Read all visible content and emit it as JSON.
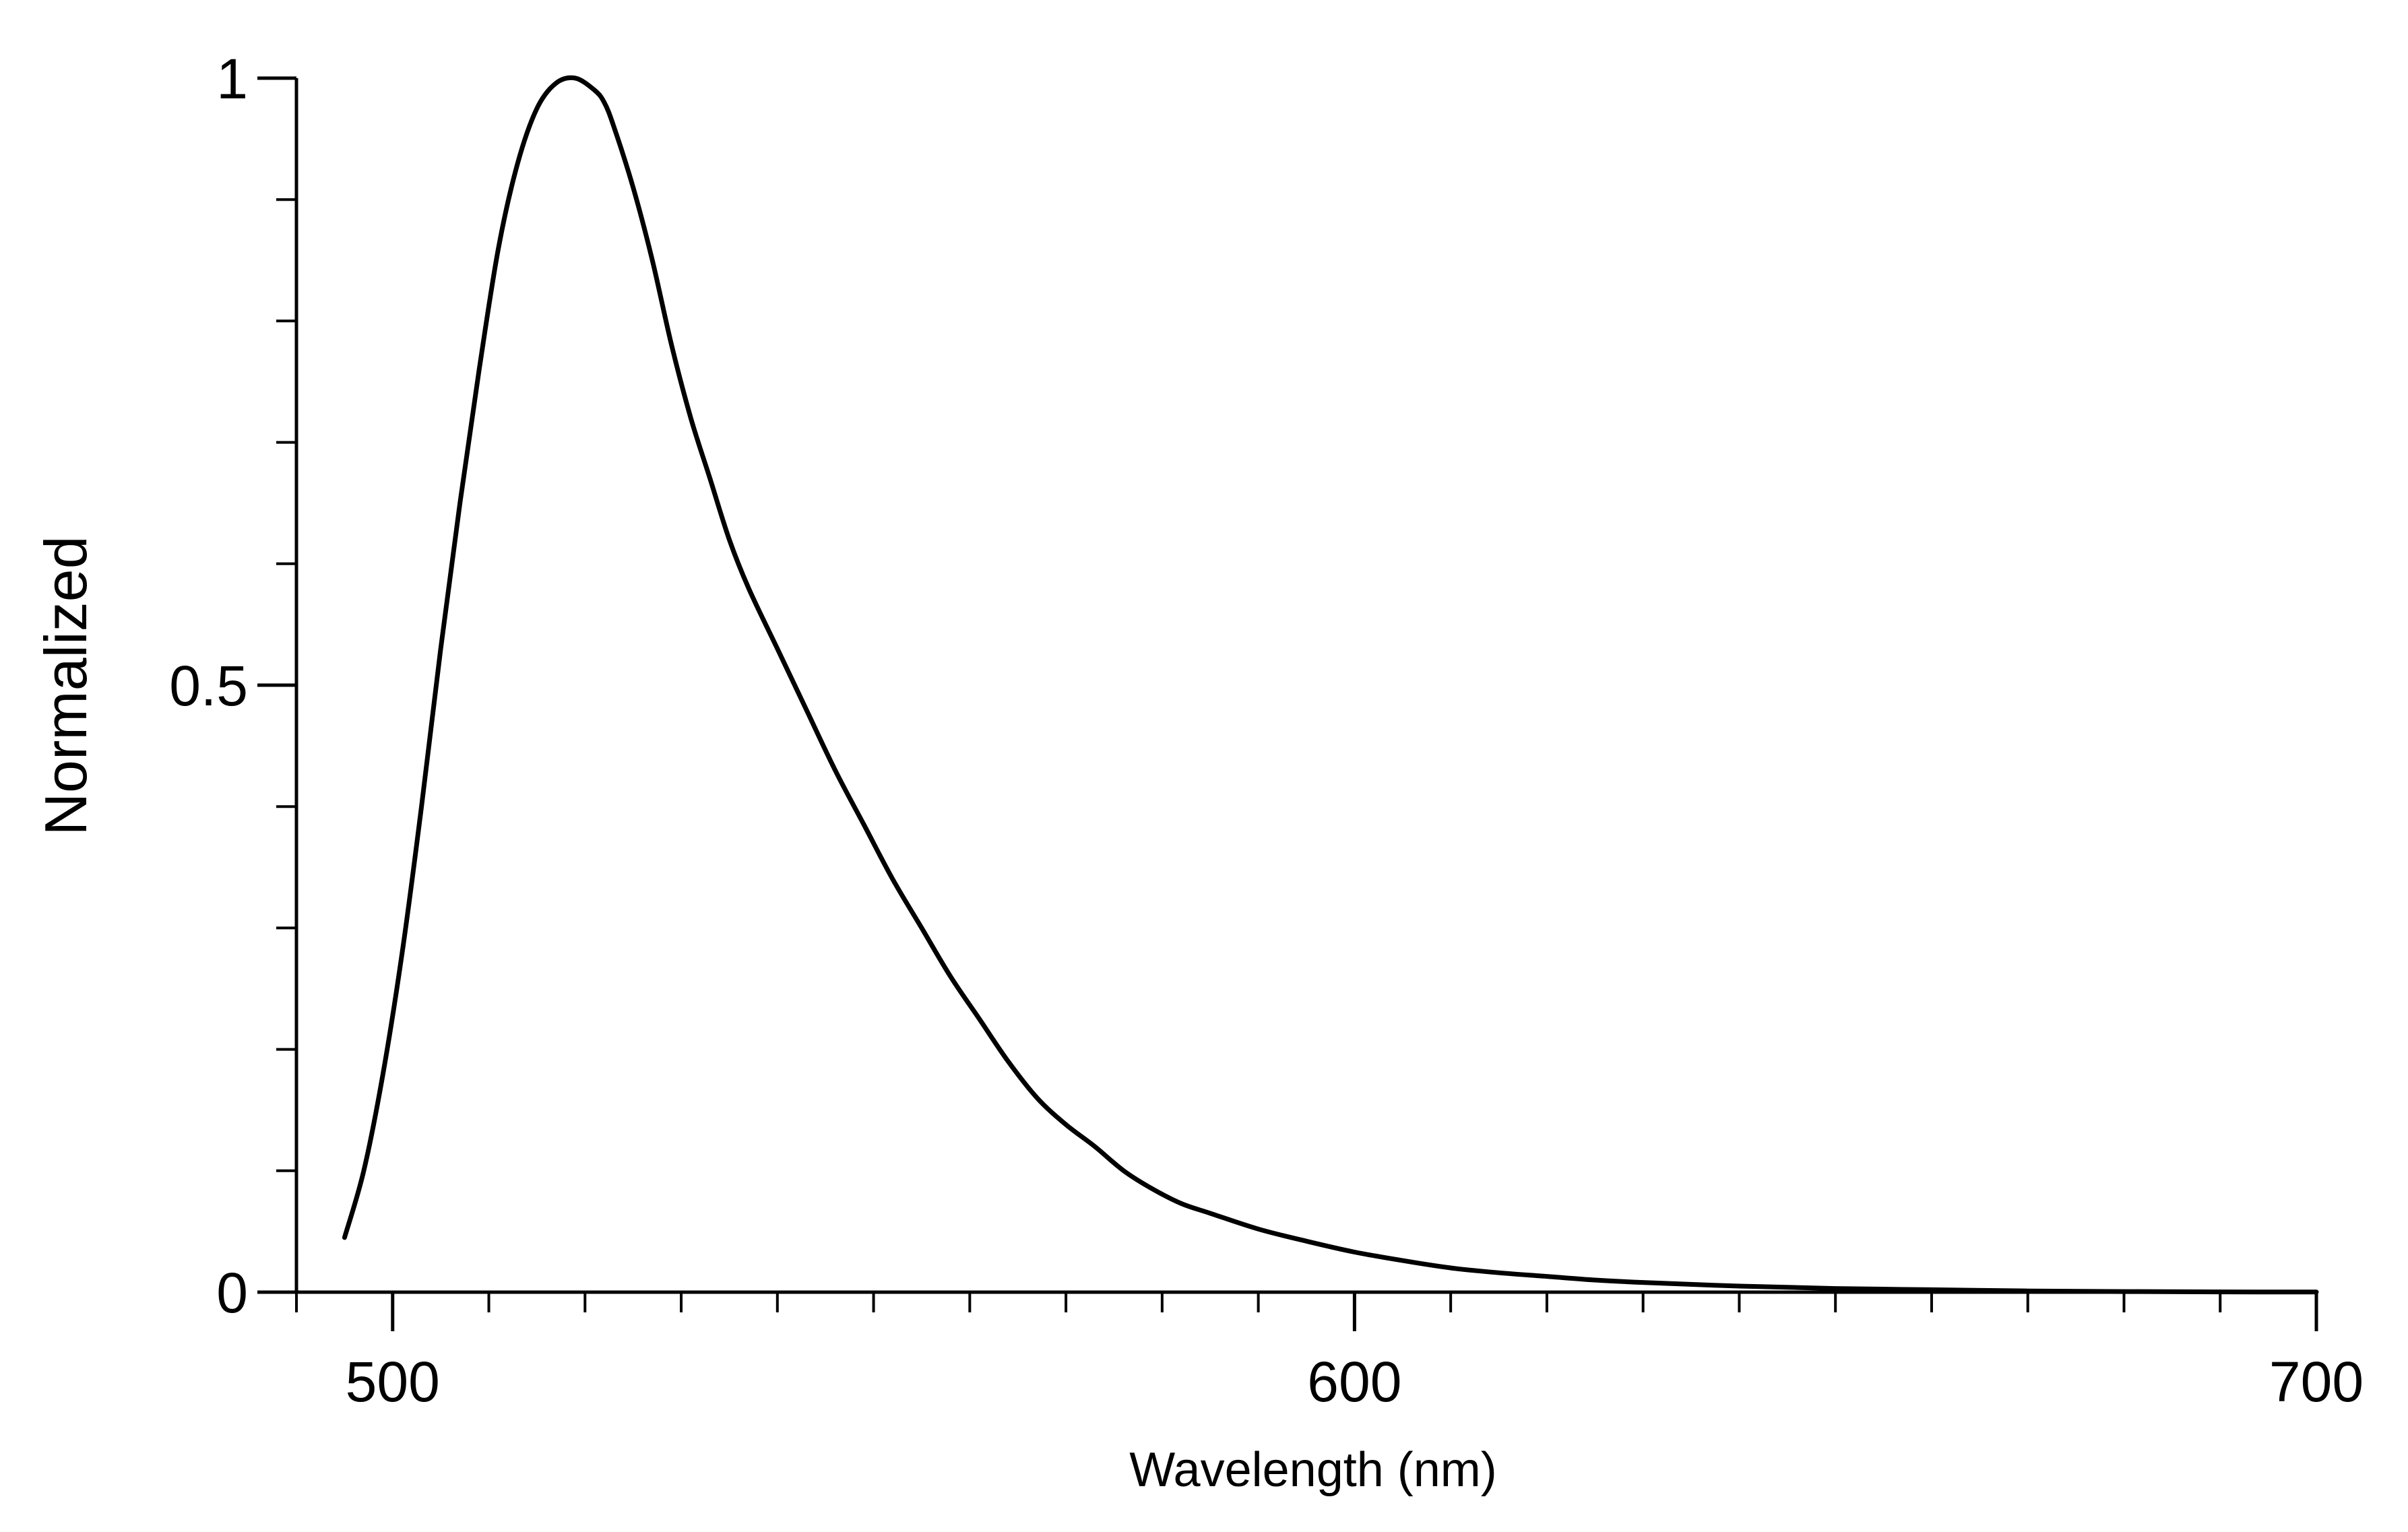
{
  "chart_data": {
    "type": "line",
    "title": "",
    "xlabel": "Wavelength (nm)",
    "ylabel": "Normalized",
    "xlim": [
      490,
      700
    ],
    "ylim": [
      0,
      1
    ],
    "x_major_ticks": [
      500,
      600,
      700
    ],
    "x_tick_labels": [
      "500",
      "600",
      "700"
    ],
    "x_minor_step": 10,
    "y_major_ticks": [
      0,
      0.5,
      1
    ],
    "y_tick_labels": [
      "0",
      "0.5",
      "1"
    ],
    "y_minor_step": 0.1,
    "grid": false,
    "legend": "none",
    "line_color": "#000000",
    "series": [
      {
        "x": [
          495,
          497,
          499,
          501,
          503,
          505,
          507,
          509,
          511,
          513,
          515,
          517,
          519,
          521,
          522,
          523,
          525,
          527,
          529,
          531,
          533,
          535,
          537,
          540,
          543,
          546,
          549,
          552,
          555,
          558,
          561,
          564,
          567,
          570,
          573,
          576,
          579,
          582,
          585,
          590,
          595,
          600,
          605,
          610,
          615,
          620,
          625,
          630,
          640,
          650,
          660,
          670,
          680,
          690,
          700
        ],
        "y": [
          0.045,
          0.1,
          0.18,
          0.28,
          0.4,
          0.53,
          0.65,
          0.76,
          0.86,
          0.93,
          0.975,
          0.996,
          1.0,
          0.99,
          0.98,
          0.96,
          0.91,
          0.85,
          0.78,
          0.72,
          0.67,
          0.62,
          0.58,
          0.53,
          0.48,
          0.43,
          0.385,
          0.34,
          0.3,
          0.26,
          0.225,
          0.19,
          0.16,
          0.138,
          0.12,
          0.1,
          0.085,
          0.073,
          0.065,
          0.052,
          0.042,
          0.033,
          0.026,
          0.02,
          0.016,
          0.013,
          0.01,
          0.008,
          0.005,
          0.003,
          0.002,
          0.001,
          0.0005,
          0.0002,
          0.0001
        ]
      }
    ]
  }
}
